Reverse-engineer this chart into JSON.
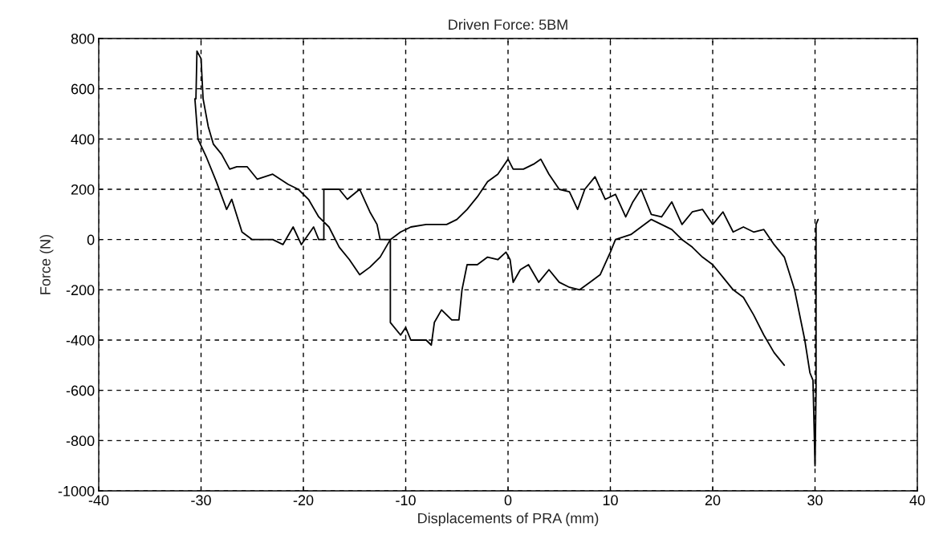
{
  "chart_data": {
    "type": "line",
    "title": "Driven Force: 5BM",
    "xlabel": "Displacements of PRA (mm)",
    "ylabel": "Force (N)",
    "xlim": [
      -40,
      40
    ],
    "xticks": [
      -40,
      -30,
      -20,
      -10,
      0,
      10,
      20,
      30,
      40
    ],
    "ylim": [
      -1000,
      800
    ],
    "yticks": [
      -1000,
      -800,
      -600,
      -400,
      -200,
      0,
      200,
      400,
      600,
      800
    ],
    "grid": true,
    "marker": "none",
    "line_style": "solid",
    "series": [
      {
        "color": "#000000",
        "x": [
          27,
          26,
          25,
          24,
          23,
          22,
          21,
          20,
          19,
          18,
          17,
          16,
          15,
          14,
          13,
          12,
          10.5,
          10,
          9,
          8,
          7,
          6,
          5,
          4,
          3,
          2,
          1.2,
          0.5,
          0.2,
          -0.2,
          -1,
          -2,
          -3,
          -4,
          -4.5,
          -4.8,
          -5.5,
          -6.5,
          -7.2,
          -7.5,
          -8,
          -9.5,
          -10,
          -10.5,
          -11.5,
          -11.5,
          -12.5,
          -12.8,
          -13.5,
          -14.5,
          -15.7,
          -16.5,
          -18,
          -18,
          -18.5,
          -19,
          -20.2,
          -21,
          -22,
          -23,
          -25,
          -26,
          -27,
          -27.5,
          -28.5,
          -29.5,
          -30.3,
          -30.6,
          -30.5,
          -30.4,
          -30.0,
          -29.8,
          -29.3,
          -28.8,
          -28.0,
          -27.2,
          -26.5,
          -25.5,
          -24.5,
          -23,
          -21.5,
          -20.5,
          -19.5,
          -18.5,
          -17.5,
          -16.5,
          -15.5,
          -14.5,
          -13.5,
          -12.5,
          -11.5,
          -10.5,
          -9.5,
          -8,
          -6,
          -5,
          -4,
          -3,
          -2,
          -1,
          0,
          0.5,
          1.5,
          2.5,
          3.2,
          4,
          5,
          6,
          6.8,
          7.5,
          8.5,
          9.5,
          10.5,
          11.5,
          12.2,
          13,
          14,
          15,
          16,
          17,
          18,
          19,
          20,
          21,
          22,
          23,
          24,
          25,
          26,
          27,
          28,
          29,
          29.5,
          29.8,
          30,
          30.1,
          30.1,
          30.3
        ],
        "values": [
          -500,
          -450,
          -380,
          -300,
          -230,
          -200,
          -150,
          -100,
          -70,
          -30,
          0,
          40,
          60,
          80,
          50,
          20,
          0,
          -50,
          -140,
          -170,
          -200,
          -190,
          -170,
          -120,
          -170,
          -100,
          -120,
          -170,
          -80,
          -50,
          -80,
          -70,
          -100,
          -100,
          -200,
          -320,
          -320,
          -280,
          -330,
          -420,
          -400,
          -400,
          -350,
          -380,
          -330,
          0,
          0,
          60,
          110,
          200,
          160,
          200,
          200,
          0,
          0,
          50,
          -20,
          50,
          -20,
          0,
          0,
          30,
          160,
          120,
          230,
          330,
          400,
          560,
          560,
          750,
          720,
          560,
          450,
          380,
          340,
          280,
          290,
          290,
          240,
          260,
          220,
          200,
          160,
          90,
          50,
          -30,
          -80,
          -140,
          -110,
          -70,
          0,
          30,
          50,
          60,
          60,
          80,
          120,
          170,
          230,
          260,
          320,
          280,
          280,
          300,
          320,
          260,
          200,
          190,
          120,
          200,
          250,
          160,
          180,
          90,
          150,
          200,
          100,
          90,
          150,
          60,
          110,
          120,
          60,
          110,
          30,
          50,
          30,
          40,
          -20,
          -70,
          -200,
          -400,
          -530,
          -560,
          -900,
          -600,
          60,
          80
        ]
      }
    ]
  }
}
